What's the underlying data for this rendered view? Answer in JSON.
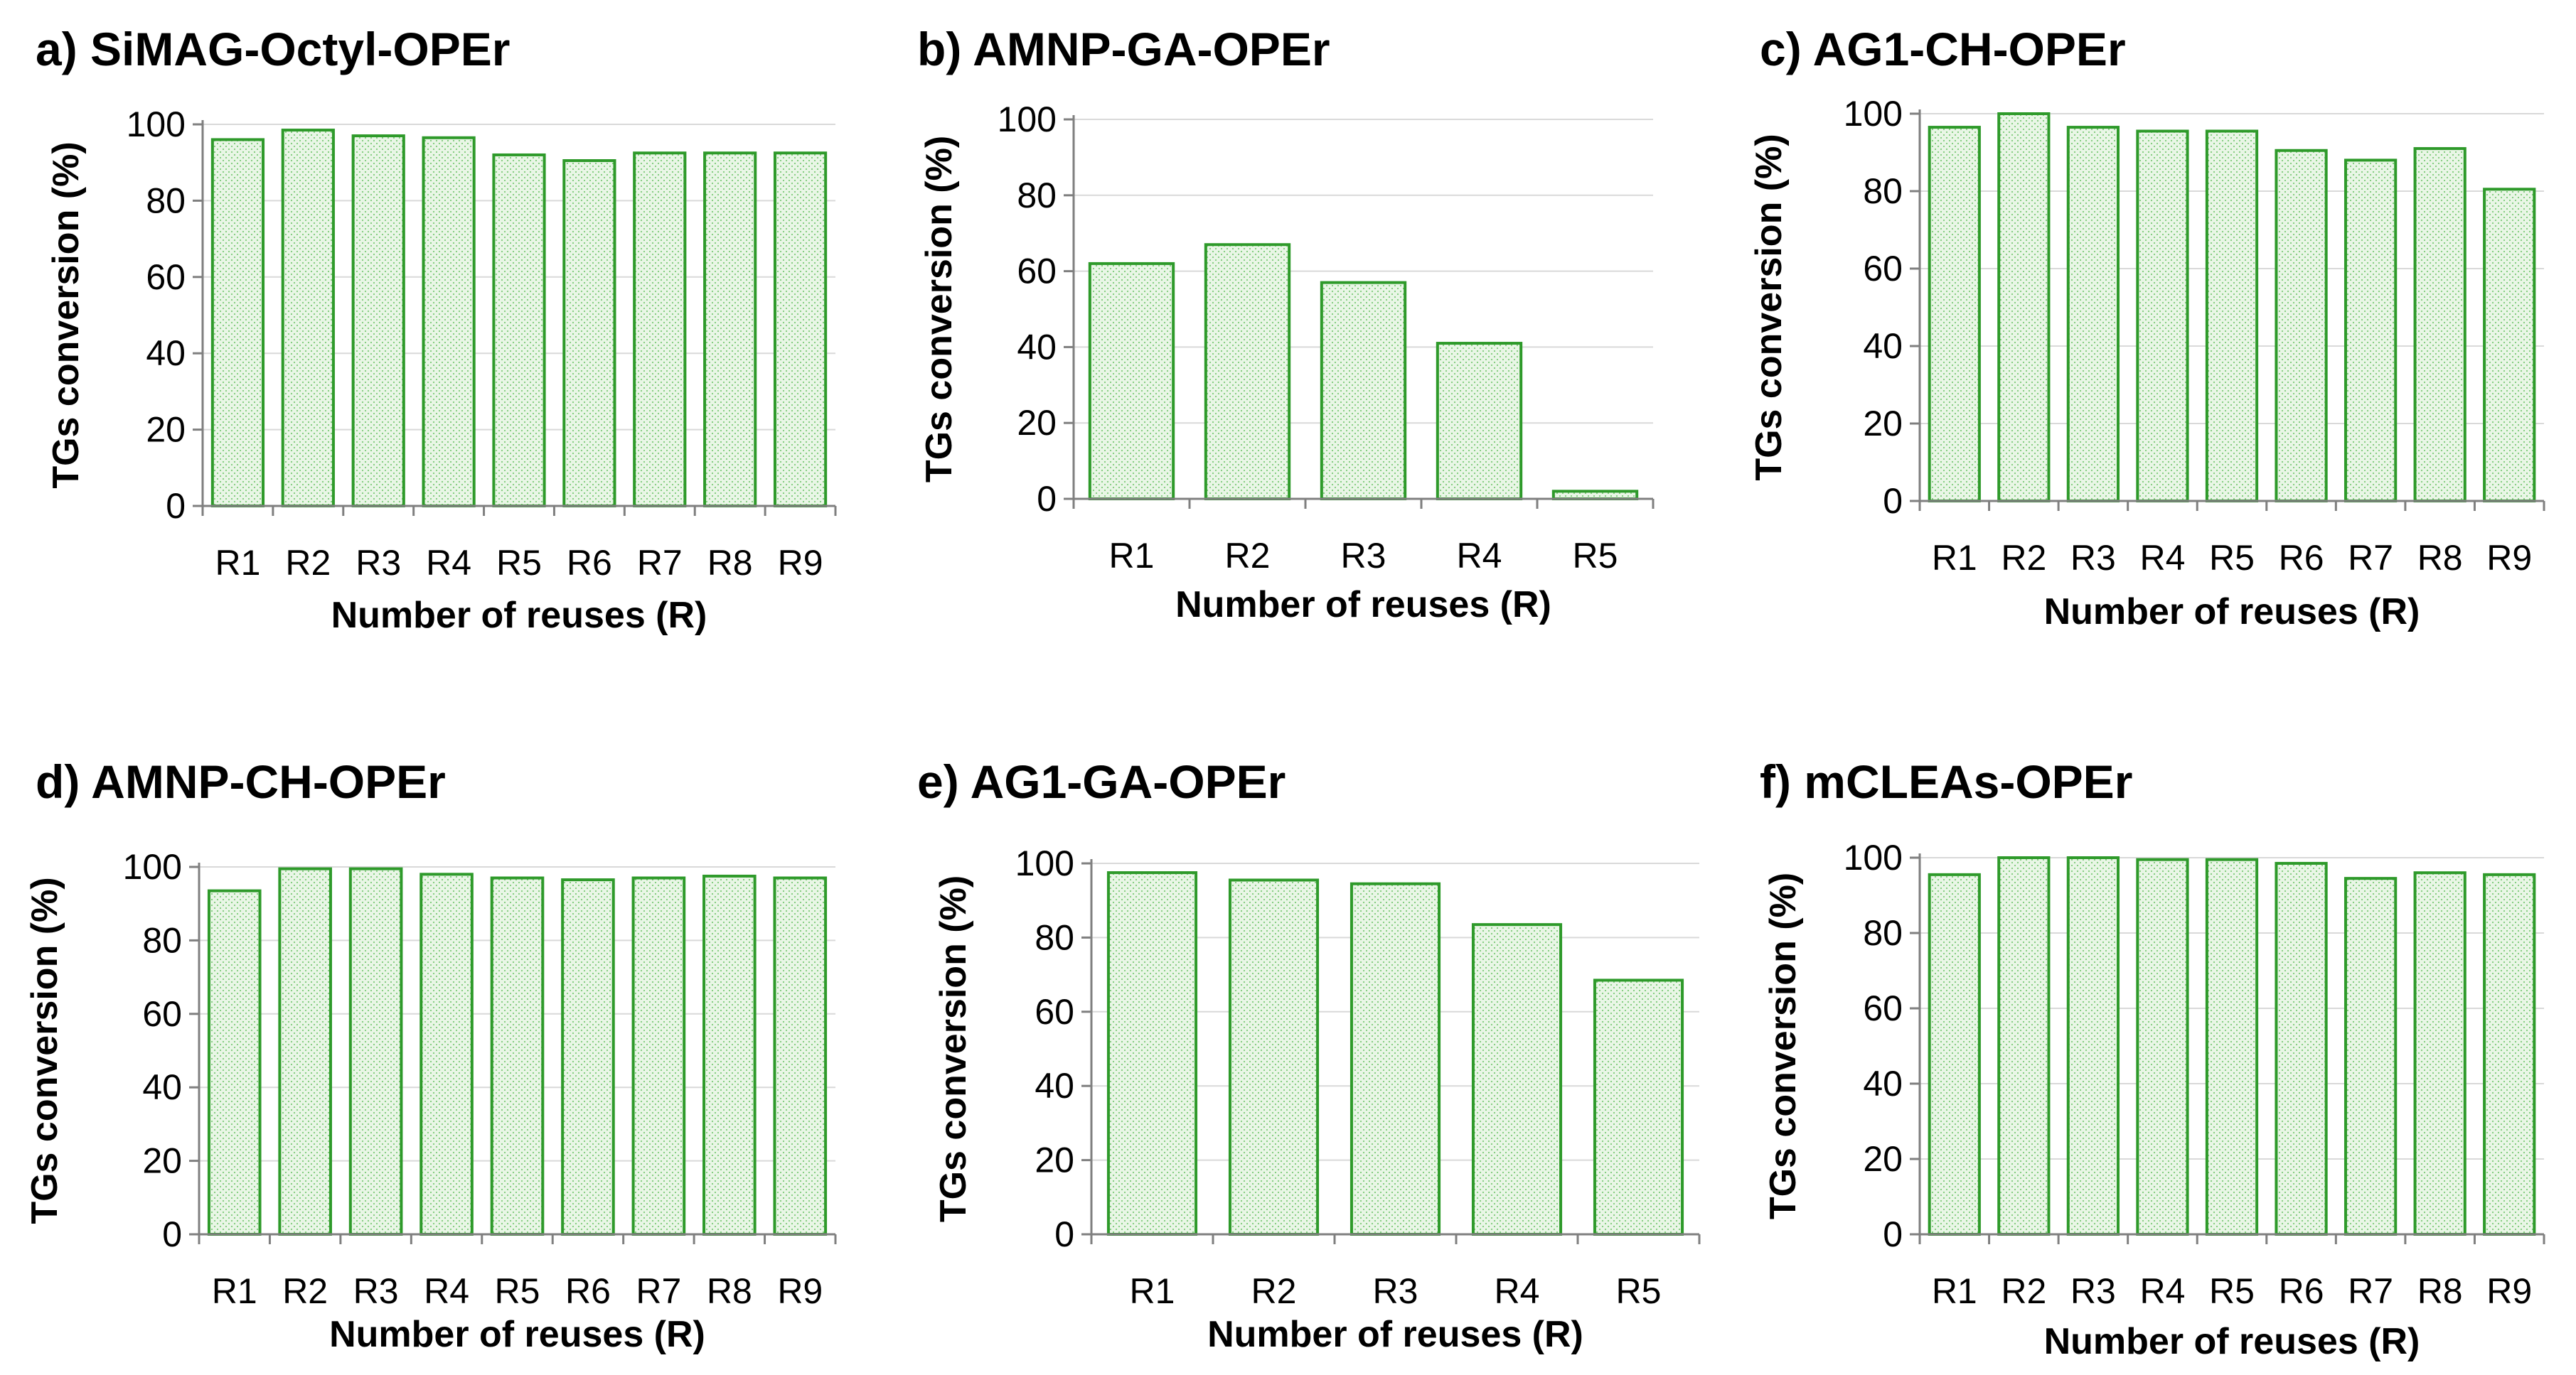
{
  "chart_data": [
    {
      "type": "bar",
      "title": "a) SiMAG-Octyl-OPEr",
      "xlabel": "Number of reuses (R)",
      "ylabel": "TGs conversion (%)",
      "ylim": [
        0,
        100
      ],
      "yticks": [
        0,
        20,
        40,
        60,
        80,
        100
      ],
      "grid": true,
      "categories": [
        "R1",
        "R2",
        "R3",
        "R4",
        "R5",
        "R6",
        "R7",
        "R8",
        "R9"
      ],
      "values": [
        96,
        98.5,
        97,
        96.5,
        92,
        90.5,
        92.5,
        92.5,
        92.5
      ]
    },
    {
      "type": "bar",
      "title": "b) AMNP-GA-OPEr",
      "xlabel": "Number of reuses (R)",
      "ylabel": "TGs conversion (%)",
      "ylim": [
        0,
        100
      ],
      "yticks": [
        0,
        20,
        40,
        60,
        80,
        100
      ],
      "grid": true,
      "categories": [
        "R1",
        "R2",
        "R3",
        "R4",
        "R5"
      ],
      "values": [
        62,
        67,
        57,
        41,
        2
      ]
    },
    {
      "type": "bar",
      "title": "c) AG1-CH-OPEr",
      "xlabel": "Number of reuses (R)",
      "ylabel": "TGs conversion (%)",
      "ylim": [
        0,
        100
      ],
      "yticks": [
        0,
        20,
        40,
        60,
        80,
        100
      ],
      "grid": true,
      "categories": [
        "R1",
        "R2",
        "R3",
        "R4",
        "R5",
        "R6",
        "R7",
        "R8",
        "R9"
      ],
      "values": [
        96.5,
        100,
        96.5,
        95.5,
        95.5,
        90.5,
        88,
        91,
        80.5
      ]
    },
    {
      "type": "bar",
      "title": "d) AMNP-CH-OPEr",
      "xlabel": "Number of reuses (R)",
      "ylabel": "TGs conversion (%)",
      "ylim": [
        0,
        100
      ],
      "yticks": [
        0,
        20,
        40,
        60,
        80,
        100
      ],
      "grid": true,
      "categories": [
        "R1",
        "R2",
        "R3",
        "R4",
        "R5",
        "R6",
        "R7",
        "R8",
        "R9"
      ],
      "values": [
        93.5,
        99.5,
        99.5,
        98,
        97,
        96.5,
        97,
        97.5,
        97
      ]
    },
    {
      "type": "bar",
      "title": "e) AG1-GA-OPEr",
      "xlabel": "Number of reuses (R)",
      "ylabel": "TGs conversion (%)",
      "ylim": [
        0,
        100
      ],
      "yticks": [
        0,
        20,
        40,
        60,
        80,
        100
      ],
      "grid": true,
      "categories": [
        "R1",
        "R2",
        "R3",
        "R4",
        "R5"
      ],
      "values": [
        97.5,
        95.5,
        94.5,
        83.5,
        68.5
      ]
    },
    {
      "type": "bar",
      "title": "f) mCLEAs-OPEr",
      "xlabel": "Number of reuses (R)",
      "ylabel": "TGs conversion (%)",
      "ylim": [
        0,
        100
      ],
      "yticks": [
        0,
        20,
        40,
        60,
        80,
        100
      ],
      "grid": true,
      "categories": [
        "R1",
        "R2",
        "R3",
        "R4",
        "R5",
        "R6",
        "R7",
        "R8",
        "R9"
      ],
      "values": [
        95.5,
        100,
        100,
        99.5,
        99.5,
        98.5,
        94.5,
        96,
        95.5
      ]
    }
  ],
  "colors": {
    "bar_stroke": "#2e9a2a",
    "bar_fill": "#e9f6e6",
    "bar_dot": "#7cc978",
    "gridline": "#d9d9d9",
    "axis": "#7f7f7f"
  }
}
